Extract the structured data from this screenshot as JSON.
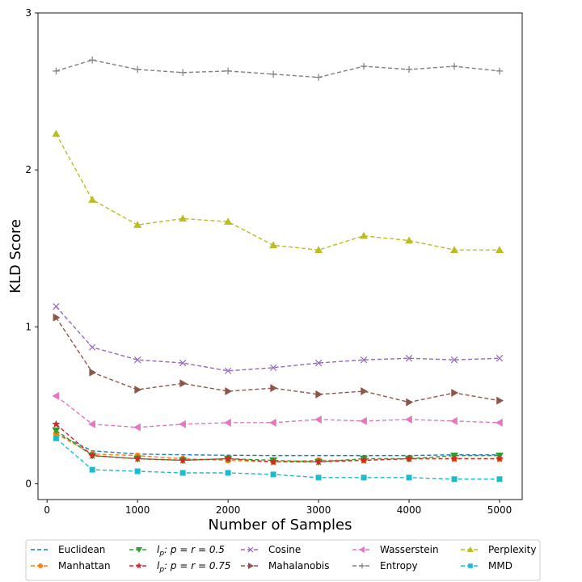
{
  "chart_data": {
    "type": "line",
    "xlabel": "Number of Samples",
    "ylabel": "KLD Score",
    "x": [
      100,
      500,
      1000,
      1500,
      2000,
      2500,
      3000,
      3500,
      4000,
      4500,
      5000
    ],
    "xlim": [
      -100,
      5250
    ],
    "ylim": [
      -0.1,
      3.0
    ],
    "xticks": [
      0,
      1000,
      2000,
      3000,
      4000,
      5000
    ],
    "yticks": [
      0,
      1,
      2,
      3
    ],
    "grid": false,
    "legend_placement": "below plot",
    "series": [
      {
        "name": "Euclidean",
        "color": "#1f77b4",
        "marker": "none",
        "values": [
          0.32,
          0.21,
          0.19,
          0.185,
          0.182,
          0.18,
          0.18,
          0.18,
          0.18,
          0.185,
          0.185
        ]
      },
      {
        "name": "Manhattan",
        "color": "#ff7f0e",
        "marker": "circle",
        "values": [
          0.32,
          0.19,
          0.18,
          0.16,
          0.15,
          0.14,
          0.15,
          0.15,
          0.16,
          0.16,
          0.16
        ]
      },
      {
        "name": "l_p: p = r = 0.5",
        "color": "#2ca02c",
        "marker": "triangle-down",
        "values": [
          0.34,
          0.18,
          0.16,
          0.15,
          0.16,
          0.15,
          0.14,
          0.16,
          0.16,
          0.18,
          0.18
        ]
      },
      {
        "name": "l_p: p = r = 0.75",
        "color": "#d62728",
        "marker": "star",
        "values": [
          0.38,
          0.18,
          0.16,
          0.15,
          0.16,
          0.14,
          0.14,
          0.15,
          0.16,
          0.16,
          0.16
        ]
      },
      {
        "name": "Cosine",
        "color": "#9467bd",
        "marker": "x",
        "values": [
          1.13,
          0.87,
          0.79,
          0.77,
          0.72,
          0.74,
          0.77,
          0.79,
          0.8,
          0.79,
          0.8
        ]
      },
      {
        "name": "Mahalanobis",
        "color": "#8c564b",
        "marker": "triangle-right",
        "values": [
          1.06,
          0.71,
          0.6,
          0.64,
          0.59,
          0.61,
          0.57,
          0.59,
          0.52,
          0.58,
          0.53
        ]
      },
      {
        "name": "Wasserstein",
        "color": "#e377c2",
        "marker": "triangle-left",
        "values": [
          0.56,
          0.38,
          0.36,
          0.38,
          0.39,
          0.39,
          0.41,
          0.4,
          0.41,
          0.4,
          0.39
        ]
      },
      {
        "name": "Entropy",
        "color": "#7f7f7f",
        "marker": "plus",
        "values": [
          2.63,
          2.7,
          2.64,
          2.62,
          2.63,
          2.61,
          2.59,
          2.66,
          2.64,
          2.66,
          2.63
        ]
      },
      {
        "name": "Perplexity",
        "color": "#bcbd22",
        "marker": "triangle-up",
        "values": [
          2.23,
          1.81,
          1.65,
          1.69,
          1.67,
          1.52,
          1.49,
          1.58,
          1.55,
          1.49,
          1.49
        ]
      },
      {
        "name": "MMD",
        "color": "#17becf",
        "marker": "square",
        "values": [
          0.29,
          0.09,
          0.08,
          0.07,
          0.07,
          0.06,
          0.04,
          0.04,
          0.04,
          0.03,
          0.03
        ]
      }
    ]
  }
}
